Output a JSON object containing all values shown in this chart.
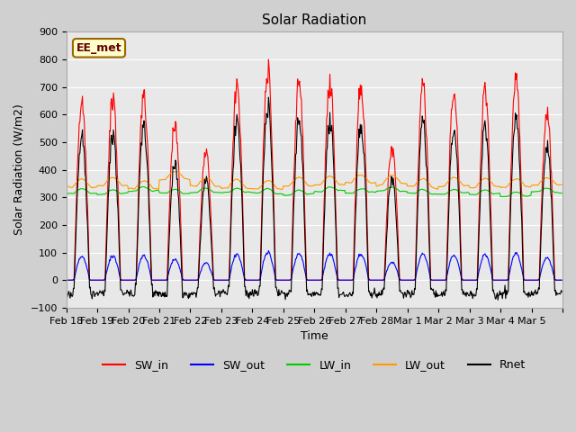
{
  "title": "Solar Radiation",
  "xlabel": "Time",
  "ylabel": "Solar Radiation (W/m2)",
  "ylim": [
    -100,
    900
  ],
  "yticks": [
    -100,
    0,
    100,
    200,
    300,
    400,
    500,
    600,
    700,
    800,
    900
  ],
  "fig_bg_color": "#d0d0d0",
  "plot_bg": "#e8e8e8",
  "annotation_text": "EE_met",
  "annotation_box_color": "#ffffcc",
  "annotation_border_color": "#996600",
  "legend_labels": [
    "SW_in",
    "SW_out",
    "LW_in",
    "LW_out",
    "Rnet"
  ],
  "line_colors": {
    "SW_in": "#ff0000",
    "SW_out": "#0000ff",
    "LW_in": "#00cc00",
    "LW_out": "#ff9900",
    "Rnet": "#000000"
  },
  "x_tick_labels": [
    "Feb 18",
    "Feb 19",
    "Feb 20",
    "Feb 21",
    "Feb 22",
    "Feb 23",
    "Feb 24",
    "Feb 25",
    "Feb 26",
    "Feb 27",
    "Feb 28",
    "Mar 1",
    "Mar 2",
    "Mar 3",
    "Mar 4",
    "Mar 5",
    ""
  ],
  "SW_in_peaks": [
    690,
    700,
    705,
    610,
    495,
    740,
    810,
    760,
    755,
    760,
    500,
    750,
    745,
    735,
    795,
    640
  ],
  "n_days": 16,
  "points_per_day": 48
}
